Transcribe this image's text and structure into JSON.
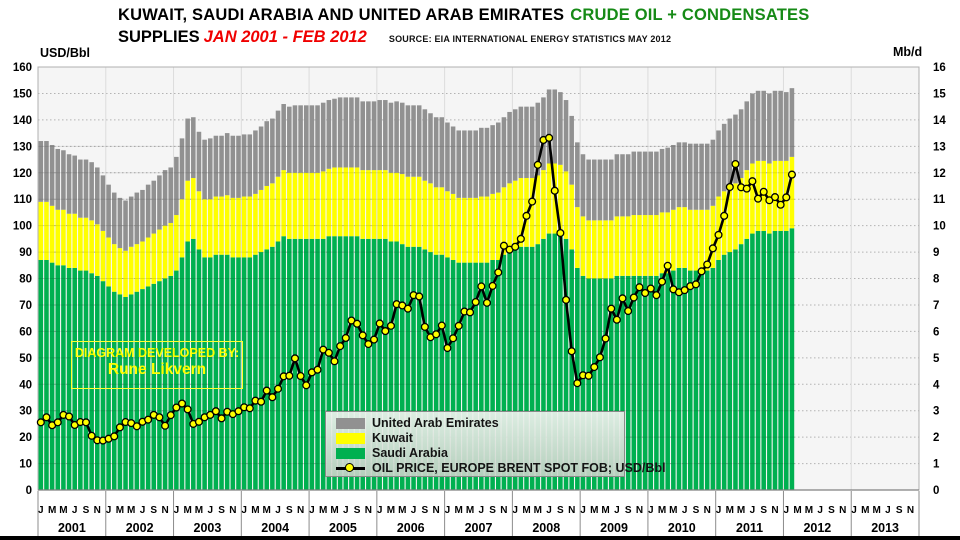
{
  "header": {
    "title_black": "KUWAIT, SAUDI ARABIA AND UNITED ARAB EMIRATES",
    "title_green": "CRUDE OIL + CONDENSATES",
    "title2_black": "SUPPLIES",
    "title2_red": "JAN 2001 - FEB 2012",
    "source": "SOURCE: EIA INTERNATIONAL ENERGY STATISTICS  MAY 2012"
  },
  "axes": {
    "left_title": "USD/Bbl",
    "right_title": "Mb/d",
    "left_ticks": [
      0,
      10,
      20,
      30,
      40,
      50,
      60,
      70,
      80,
      90,
      100,
      110,
      120,
      130,
      140,
      150,
      160
    ],
    "right_ticks": [
      0,
      1,
      2,
      3,
      4,
      5,
      6,
      7,
      8,
      9,
      10,
      11,
      12,
      13,
      14,
      15,
      16
    ]
  },
  "watermark": {
    "line1": "DIAGRAM DEVELOPED BY:",
    "line2": "Rune Likvern"
  },
  "legend": {
    "items": [
      {
        "label": "United Arab Emirates",
        "swatch": "#919191",
        "type": "box"
      },
      {
        "label": "Kuwait",
        "swatch": "#ffff00",
        "type": "box"
      },
      {
        "label": "Saudi Arabia",
        "swatch": "#00b050",
        "type": "box"
      },
      {
        "label": "OIL PRICE, EUROPE BRENT SPOT FOB; USD/Bbl",
        "type": "line-marker"
      }
    ]
  },
  "colors": {
    "saudi_arabia": "#00b050",
    "kuwait": "#ffff00",
    "uae": "#919191",
    "price_line": "#000000",
    "price_marker_fill": "#ffff00",
    "plot_background": "#f5f5f5",
    "gridline": "#b3b3b3",
    "title_green": "#168a16",
    "title_red": "#f00000",
    "watermark_yellow": "#ffff00"
  },
  "chart_data": {
    "type": "bar",
    "subtype": "stacked-monthly-bars-with-price-line",
    "start": "2001-01",
    "end": "2012-02",
    "x_years": [
      2001,
      2002,
      2003,
      2004,
      2005,
      2006,
      2007,
      2008,
      2009,
      2010,
      2011,
      2012,
      2013
    ],
    "month_tick_letters": [
      "J",
      "M",
      "M",
      "J",
      "S",
      "N"
    ],
    "month_tick_positions": [
      0,
      2,
      4,
      6,
      8,
      10
    ],
    "left_axis_label": "USD/Bbl",
    "right_axis_label": "Mb/d",
    "left_axis_range": [
      0,
      160
    ],
    "right_axis_range": [
      0,
      16
    ],
    "grid": "horizontal-dotted-every-10",
    "legend_position": "inside-bottom-center",
    "series": [
      {
        "name": "Saudi Arabia",
        "unit": "Mb/d",
        "color": "#00b050",
        "values": [
          8.7,
          8.7,
          8.6,
          8.5,
          8.5,
          8.4,
          8.4,
          8.3,
          8.3,
          8.2,
          8.1,
          7.9,
          7.7,
          7.5,
          7.4,
          7.3,
          7.4,
          7.5,
          7.6,
          7.7,
          7.8,
          7.9,
          8.0,
          8.1,
          8.3,
          8.8,
          9.4,
          9.5,
          9.1,
          8.8,
          8.8,
          8.9,
          8.9,
          8.9,
          8.8,
          8.8,
          8.8,
          8.8,
          8.9,
          9.0,
          9.1,
          9.2,
          9.4,
          9.6,
          9.5,
          9.5,
          9.5,
          9.5,
          9.5,
          9.5,
          9.5,
          9.6,
          9.6,
          9.6,
          9.6,
          9.6,
          9.6,
          9.5,
          9.5,
          9.5,
          9.5,
          9.5,
          9.4,
          9.4,
          9.3,
          9.2,
          9.2,
          9.2,
          9.1,
          9.0,
          8.9,
          8.9,
          8.8,
          8.7,
          8.6,
          8.6,
          8.6,
          8.6,
          8.6,
          8.6,
          8.7,
          8.7,
          8.9,
          9.0,
          9.1,
          9.2,
          9.2,
          9.2,
          9.3,
          9.5,
          9.7,
          9.7,
          9.7,
          9.5,
          9.1,
          8.4,
          8.1,
          8.0,
          8.0,
          8.0,
          8.0,
          8.0,
          8.1,
          8.1,
          8.1,
          8.1,
          8.1,
          8.1,
          8.1,
          8.1,
          8.2,
          8.2,
          8.3,
          8.4,
          8.4,
          8.3,
          8.3,
          8.3,
          8.3,
          8.4,
          8.7,
          8.9,
          9.0,
          9.1,
          9.3,
          9.5,
          9.7,
          9.8,
          9.8,
          9.7,
          9.8,
          9.8,
          9.8,
          9.9
        ]
      },
      {
        "name": "Kuwait",
        "unit": "Mb/d",
        "color": "#ffff00",
        "values": [
          2.2,
          2.2,
          2.15,
          2.1,
          2.1,
          2.05,
          2.05,
          2.0,
          2.0,
          2.0,
          1.95,
          1.9,
          1.85,
          1.8,
          1.75,
          1.75,
          1.8,
          1.8,
          1.8,
          1.85,
          1.9,
          1.95,
          2.0,
          2.0,
          2.1,
          2.2,
          2.3,
          2.3,
          2.2,
          2.2,
          2.2,
          2.2,
          2.2,
          2.25,
          2.25,
          2.25,
          2.3,
          2.3,
          2.3,
          2.35,
          2.4,
          2.4,
          2.45,
          2.5,
          2.5,
          2.5,
          2.5,
          2.5,
          2.5,
          2.5,
          2.55,
          2.55,
          2.6,
          2.6,
          2.6,
          2.6,
          2.6,
          2.6,
          2.6,
          2.6,
          2.6,
          2.6,
          2.6,
          2.6,
          2.65,
          2.65,
          2.65,
          2.65,
          2.6,
          2.6,
          2.55,
          2.55,
          2.5,
          2.5,
          2.45,
          2.45,
          2.45,
          2.45,
          2.5,
          2.5,
          2.5,
          2.55,
          2.55,
          2.6,
          2.6,
          2.6,
          2.6,
          2.6,
          2.6,
          2.6,
          2.65,
          2.65,
          2.6,
          2.55,
          2.45,
          2.3,
          2.25,
          2.2,
          2.2,
          2.2,
          2.2,
          2.2,
          2.25,
          2.25,
          2.25,
          2.3,
          2.3,
          2.3,
          2.3,
          2.3,
          2.3,
          2.3,
          2.3,
          2.3,
          2.3,
          2.3,
          2.3,
          2.3,
          2.3,
          2.35,
          2.4,
          2.4,
          2.45,
          2.5,
          2.5,
          2.6,
          2.65,
          2.65,
          2.65,
          2.65,
          2.65,
          2.65,
          2.65,
          2.7
        ]
      },
      {
        "name": "United Arab Emirates",
        "unit": "Mb/d",
        "color": "#919191",
        "values": [
          2.3,
          2.3,
          2.3,
          2.3,
          2.25,
          2.25,
          2.2,
          2.2,
          2.2,
          2.2,
          2.15,
          2.1,
          2.0,
          1.95,
          1.9,
          1.9,
          1.9,
          1.95,
          1.95,
          2.0,
          2.0,
          2.05,
          2.1,
          2.1,
          2.2,
          2.3,
          2.35,
          2.3,
          2.25,
          2.25,
          2.3,
          2.3,
          2.3,
          2.35,
          2.35,
          2.35,
          2.35,
          2.35,
          2.4,
          2.4,
          2.45,
          2.45,
          2.5,
          2.5,
          2.5,
          2.55,
          2.55,
          2.55,
          2.55,
          2.55,
          2.6,
          2.6,
          2.6,
          2.65,
          2.65,
          2.65,
          2.65,
          2.6,
          2.6,
          2.6,
          2.65,
          2.65,
          2.65,
          2.7,
          2.7,
          2.7,
          2.7,
          2.7,
          2.7,
          2.65,
          2.65,
          2.65,
          2.6,
          2.55,
          2.55,
          2.55,
          2.55,
          2.55,
          2.6,
          2.6,
          2.6,
          2.65,
          2.65,
          2.7,
          2.7,
          2.7,
          2.7,
          2.7,
          2.75,
          2.75,
          2.8,
          2.8,
          2.75,
          2.7,
          2.6,
          2.45,
          2.35,
          2.3,
          2.3,
          2.3,
          2.3,
          2.3,
          2.35,
          2.35,
          2.35,
          2.4,
          2.4,
          2.4,
          2.4,
          2.4,
          2.4,
          2.45,
          2.45,
          2.45,
          2.45,
          2.5,
          2.5,
          2.5,
          2.5,
          2.5,
          2.5,
          2.55,
          2.6,
          2.6,
          2.6,
          2.6,
          2.65,
          2.65,
          2.65,
          2.65,
          2.65,
          2.65,
          2.6,
          2.6
        ]
      }
    ],
    "line_series": {
      "name": "OIL PRICE, EUROPE BRENT SPOT FOB; USD/Bbl",
      "unit": "USD/Bbl",
      "line_color": "#000000",
      "marker_fill": "#ffff00",
      "values": [
        25.6,
        27.5,
        24.5,
        25.6,
        28.4,
        27.8,
        24.6,
        25.7,
        25.6,
        20.5,
        18.8,
        18.7,
        19.4,
        20.3,
        23.7,
        25.7,
        25.3,
        24.1,
        25.8,
        26.6,
        28.4,
        27.5,
        24.3,
        28.3,
        31.2,
        32.7,
        30.5,
        25.0,
        25.8,
        27.5,
        28.4,
        29.8,
        27.1,
        29.6,
        28.7,
        29.8,
        31.3,
        30.9,
        33.8,
        33.4,
        37.6,
        35.1,
        38.3,
        43.0,
        43.2,
        49.8,
        43.1,
        39.6,
        44.5,
        45.5,
        53.1,
        51.9,
        48.7,
        54.4,
        57.5,
        64.1,
        62.9,
        58.5,
        55.2,
        56.9,
        63.0,
        60.1,
        62.1,
        70.3,
        69.8,
        68.6,
        73.7,
        73.2,
        61.7,
        57.8,
        58.9,
        62.2,
        53.7,
        57.4,
        62.1,
        67.5,
        67.2,
        71.1,
        77.0,
        70.8,
        77.2,
        82.3,
        92.4,
        90.9,
        92.0,
        95.0,
        103.7,
        109.1,
        123.0,
        132.4,
        133.2,
        113.2,
        97.2,
        71.9,
        52.5,
        40.4,
        43.4,
        43.2,
        46.5,
        50.2,
        57.3,
        68.6,
        64.4,
        72.5,
        67.7,
        72.8,
        76.7,
        74.5,
        76.2,
        73.7,
        78.8,
        84.8,
        75.9,
        74.8,
        75.6,
        77.1,
        77.8,
        82.7,
        85.3,
        91.4,
        96.5,
        103.7,
        114.6,
        123.3,
        114.5,
        114.0,
        116.8,
        110.2,
        112.8,
        109.6,
        110.8,
        107.9,
        110.7,
        119.3
      ]
    }
  }
}
